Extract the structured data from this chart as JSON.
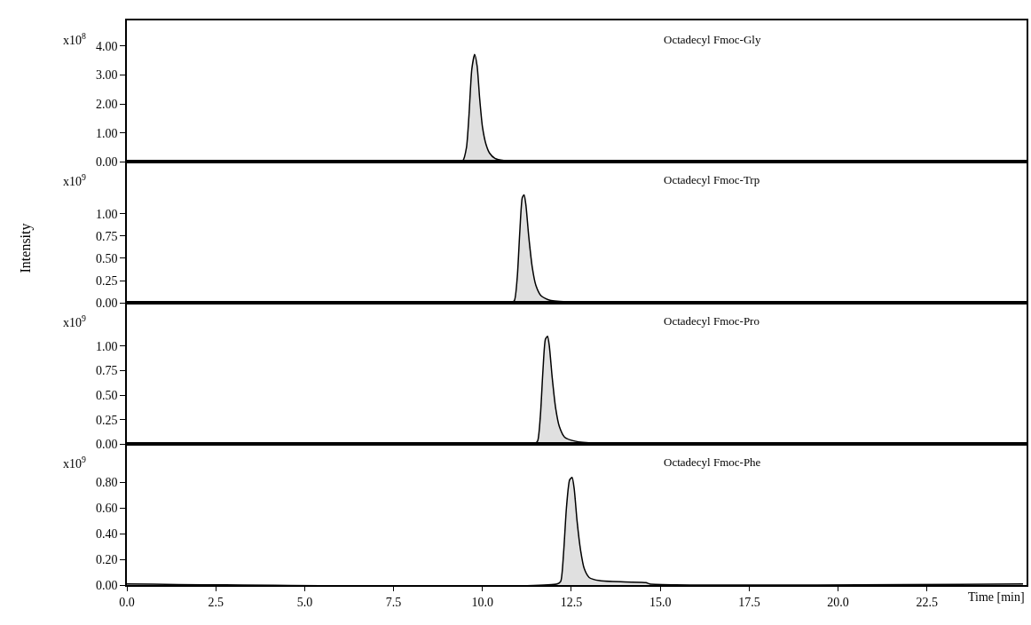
{
  "chart_data": [
    {
      "type": "area",
      "title": "Octadecyl Fmoc-Gly",
      "annotations": [
        "x10$^{8}$"
      ],
      "color": "#000000",
      "tick_labels": "y",
      "grid": false,
      "x": [
        0,
        3,
        6,
        9.3,
        9.45,
        9.55,
        9.62,
        9.7,
        9.78,
        9.85,
        9.92,
        10.0,
        10.1,
        10.2,
        10.35,
        10.6,
        11.0,
        17.0,
        25.2
      ],
      "values": [
        0.03,
        0.03,
        0.02,
        0.02,
        0.05,
        0.5,
        1.6,
        3.2,
        3.71,
        3.3,
        2.2,
        1.2,
        0.6,
        0.3,
        0.12,
        0.05,
        0.03,
        0.03,
        0.03
      ],
      "xlim": [
        0,
        25.3
      ],
      "ylim": [
        0,
        4.87
      ],
      "yticks": [
        {
          "value": 0,
          "label": "0.00"
        },
        {
          "value": 1,
          "label": "1.00"
        },
        {
          "value": 2,
          "label": "2.00"
        },
        {
          "value": 3,
          "label": "3.00"
        },
        {
          "value": 4,
          "label": "4.00"
        }
      ]
    },
    {
      "type": "area",
      "title": "Octadecyl Fmoc-Trp",
      "ylabel": "Intensity",
      "annotations": [
        "x10$^{9}$"
      ],
      "color": "#000000",
      "tick_labels": "y",
      "grid": false,
      "x": [
        0,
        10.8,
        10.9,
        10.98,
        11.05,
        11.12,
        11.17,
        11.22,
        11.3,
        11.4,
        11.5,
        11.65,
        11.9,
        12.5,
        25.2
      ],
      "values": [
        0,
        0,
        0.03,
        0.3,
        0.8,
        1.18,
        1.21,
        1.1,
        0.75,
        0.4,
        0.2,
        0.08,
        0.03,
        0.01,
        0
      ],
      "xlim": [
        0,
        25.3
      ],
      "ylim": [
        0,
        1.58
      ],
      "yticks": [
        {
          "value": 0,
          "label": "0.00"
        },
        {
          "value": 0.25,
          "label": "0.25"
        },
        {
          "value": 0.5,
          "label": "0.50"
        },
        {
          "value": 0.75,
          "label": "0.75"
        },
        {
          "value": 1,
          "label": "1.00"
        }
      ]
    },
    {
      "type": "area",
      "title": "Octadecyl Fmoc-Pro",
      "annotations": [
        "x10$^{9}$"
      ],
      "color": "#000000",
      "tick_labels": "y",
      "grid": false,
      "x": [
        0,
        11.45,
        11.55,
        11.63,
        11.7,
        11.77,
        11.83,
        11.88,
        11.96,
        12.06,
        12.16,
        12.31,
        12.6,
        13.2,
        25.2
      ],
      "values": [
        0,
        0,
        0.03,
        0.3,
        0.75,
        1.07,
        1.1,
        1.0,
        0.68,
        0.36,
        0.18,
        0.07,
        0.03,
        0.01,
        0
      ],
      "xlim": [
        0,
        25.3
      ],
      "ylim": [
        0,
        1.44
      ],
      "yticks": [
        {
          "value": 0,
          "label": "0.00"
        },
        {
          "value": 0.25,
          "label": "0.25"
        },
        {
          "value": 0.5,
          "label": "0.50"
        },
        {
          "value": 0.75,
          "label": "0.75"
        },
        {
          "value": 1,
          "label": "1.00"
        }
      ]
    },
    {
      "type": "area",
      "title": "Octadecyl Fmoc-Phe",
      "xlabel": "Time [min]",
      "annotations": [
        "x10$^{9}$"
      ],
      "color": "#000000",
      "grid": false,
      "x": [
        0,
        12.1,
        12.2,
        12.28,
        12.36,
        12.45,
        12.52,
        12.58,
        12.66,
        12.76,
        12.86,
        13.0,
        13.3,
        14.0,
        14.6,
        14.7,
        25.2
      ],
      "values": [
        0.01,
        0.01,
        0.03,
        0.25,
        0.6,
        0.82,
        0.84,
        0.75,
        0.5,
        0.27,
        0.13,
        0.06,
        0.035,
        0.025,
        0.02,
        0.01,
        0.01
      ],
      "xlim": [
        0,
        25.3
      ],
      "ylim": [
        0,
        1.1
      ],
      "xticks": [
        {
          "value": 0,
          "label": "0.0"
        },
        2.5,
        {
          "value": 5,
          "label": "5.0"
        },
        7.5,
        {
          "value": 10,
          "label": "10.0"
        },
        12.5,
        {
          "value": 15,
          "label": "15.0"
        },
        17.5,
        {
          "value": 20,
          "label": "20.0"
        },
        22.5
      ],
      "yticks": [
        {
          "value": 0,
          "label": "0.00"
        },
        {
          "value": 0.2,
          "label": "0.20"
        },
        {
          "value": 0.4,
          "label": "0.40"
        },
        {
          "value": 0.6,
          "label": "0.60"
        },
        {
          "value": 0.8,
          "label": "0.80"
        }
      ]
    }
  ]
}
